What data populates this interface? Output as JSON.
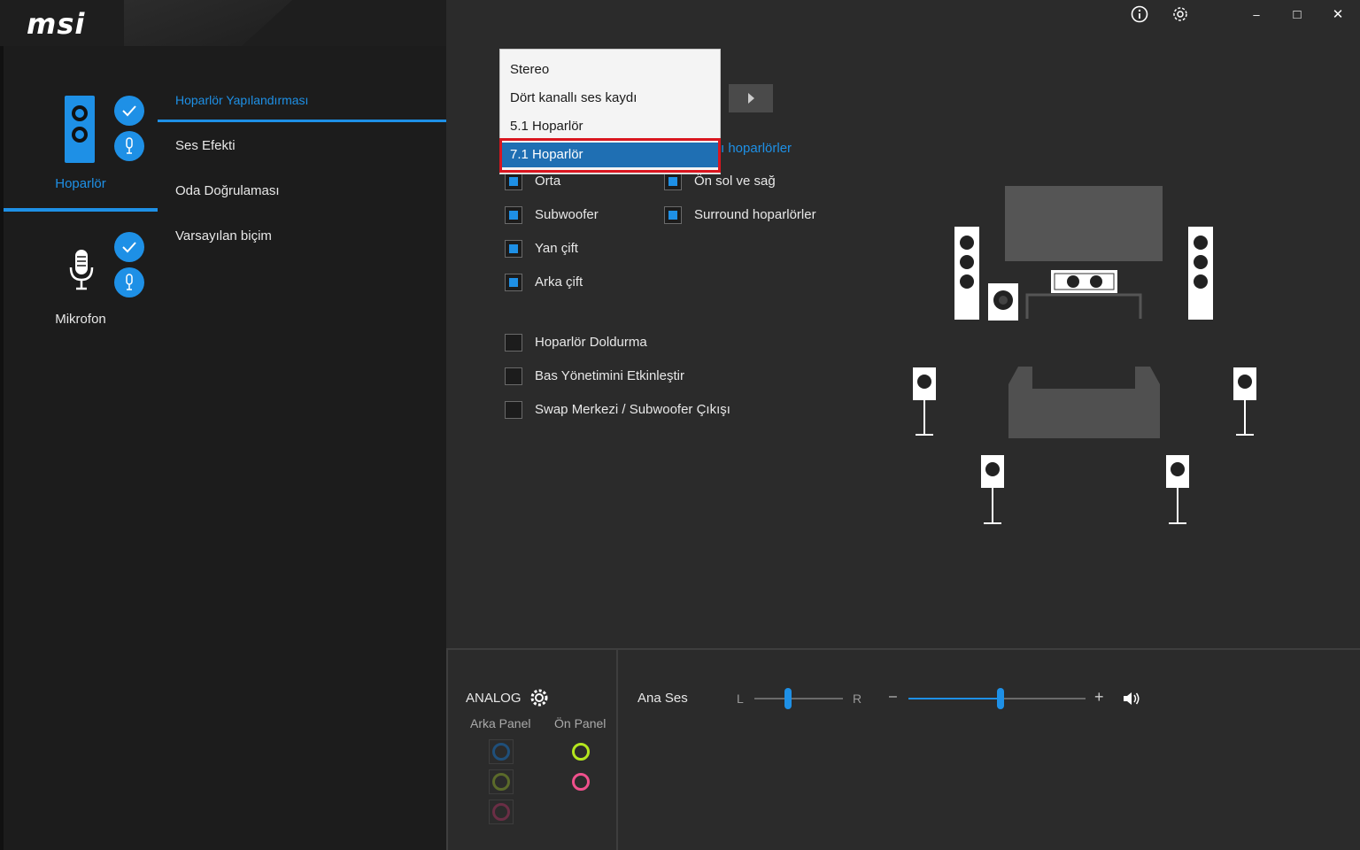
{
  "brand": {
    "logo": "msi"
  },
  "titlebar": {
    "info_icon": "info-icon",
    "settings_icon": "gear-icon",
    "minimize": "–",
    "maximize": "□",
    "close": "✕"
  },
  "devices": [
    {
      "label": "Hoparlör",
      "icon": "speaker-icon",
      "active": true
    },
    {
      "label": "Mikrofon",
      "icon": "microphone-icon",
      "active": false
    }
  ],
  "menu": {
    "items": [
      "Hoparlör Yapılandırması",
      "Ses Efekti",
      "Oda Doğrulaması",
      "Varsayılan biçim"
    ],
    "active_index": 0
  },
  "dropdown": {
    "options": [
      "Stereo",
      "Dört kanallı ses kaydı",
      "5.1 Hoparlör",
      "7.1 Hoparlör"
    ],
    "selected": "7.1 Hoparlör"
  },
  "front_speakers_link": "ı hoparlörler",
  "speaker_checks": [
    {
      "label": "Orta",
      "checked": true
    },
    {
      "label": "Subwoofer",
      "checked": true
    },
    {
      "label": "Yan çift",
      "checked": true
    },
    {
      "label": "Arka çift",
      "checked": true
    },
    {
      "label": "Ön sol ve sağ",
      "checked": true
    },
    {
      "label": "Surround hoparlörler",
      "checked": true
    }
  ],
  "options_checks": [
    {
      "label": "Hoparlör Doldurma",
      "checked": false
    },
    {
      "label": "Bas Yönetimini Etkinleştir",
      "checked": false
    },
    {
      "label": "Swap Merkezi / Subwoofer Çıkışı",
      "checked": false
    }
  ],
  "bottom": {
    "analog_label": "ANALOG",
    "rear_panel": "Arka Panel",
    "front_panel": "Ön Panel",
    "rear_jacks": [
      "#1f4f7a",
      "#5b6a2a",
      "#6a2e45"
    ],
    "front_jacks": [
      "#b4e61e",
      "#f0508c"
    ],
    "master_label": "Ana Ses",
    "balance_left": "L",
    "balance_right": "R",
    "balance_position": 0.38,
    "volume_minus": "–",
    "volume_plus": "+",
    "volume_level": 0.52
  },
  "colors": {
    "accent": "#1e90e6",
    "highlight_border": "#d9161f",
    "selected_option": "#1f6fb3"
  }
}
